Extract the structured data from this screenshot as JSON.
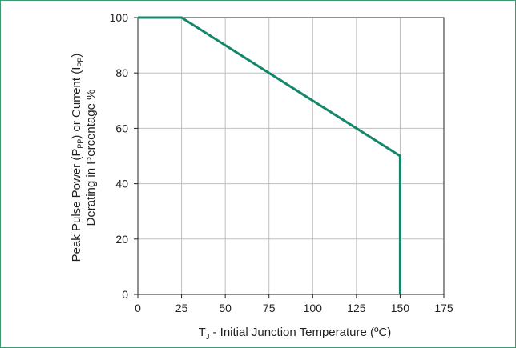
{
  "chart_data": {
    "type": "line",
    "x": [
      0,
      25,
      150,
      150
    ],
    "series": [
      {
        "values": [
          100,
          100,
          50,
          0
        ]
      }
    ],
    "xlabel": {
      "main": "T",
      "sub": "J",
      "rest": " - Initial Junction Temperature (ºC)"
    },
    "ylabel": {
      "line1": [
        "Peak Pulse Power (P",
        "PP",
        ") or Current (I",
        "PP",
        ")"
      ],
      "line2": "Derating in Percentage %"
    },
    "xlim": [
      0,
      175
    ],
    "ylim": [
      0,
      100
    ],
    "x_ticks": [
      "0",
      "25",
      "50",
      "75",
      "100",
      "125",
      "150",
      "175"
    ],
    "y_ticks": [
      "0",
      "20",
      "40",
      "60",
      "80",
      "100"
    ],
    "grid": true,
    "colors": {
      "line": "#14876b",
      "grid": "#bfbfbf",
      "axis": "#231f20",
      "border": "#3d9970"
    }
  }
}
